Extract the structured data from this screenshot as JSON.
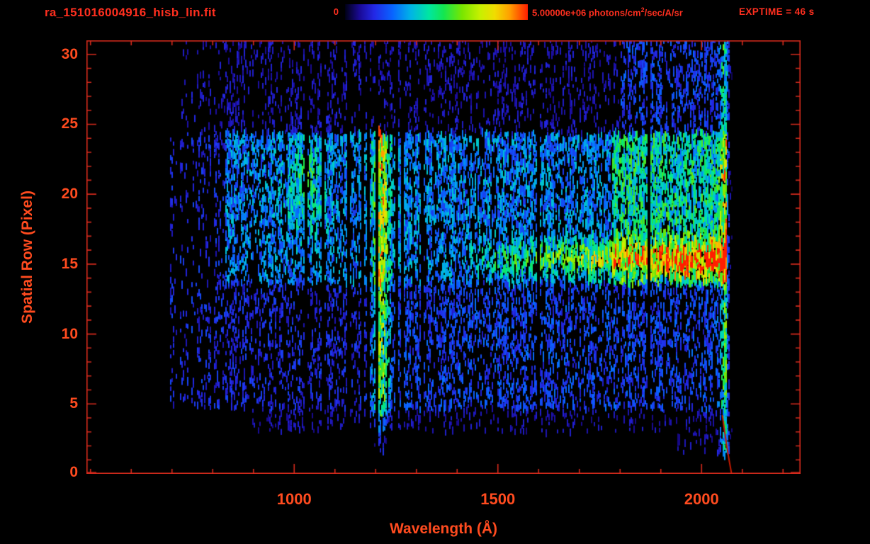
{
  "header": {
    "filename": "ra_151016004916_hisb_lin.fit",
    "exptime": "EXPTIME = 46 s",
    "colorbar": {
      "min_label": "0",
      "max_value": "5.00000e+06",
      "max_unit_pre": " photons/cm",
      "max_unit_sup": "2",
      "max_unit_post": "/sec/A/sr"
    }
  },
  "colors": {
    "background": "#000000",
    "header_text": "#ff2f1f",
    "axis_text": "#ff4b1f",
    "frame": "#d52a1c"
  },
  "chart_data": {
    "type": "heatmap",
    "title": "ra_151016004916_hisb_lin.fit",
    "xlabel": "Wavelength (Å)",
    "ylabel": "Spatial Row (Pixel)",
    "xlim": [
      490,
      2243
    ],
    "ylim": [
      0,
      31
    ],
    "x_ticks": [
      1000,
      1500,
      2000
    ],
    "x_minor_step": 100,
    "y_ticks": [
      0,
      5,
      10,
      15,
      20,
      25,
      30
    ],
    "y_minor_step": 1,
    "exposure_time_s": 46,
    "colorbar_range_photons": [
      0,
      5000000
    ],
    "colorbar_units": "photons/cm^2/sec/A/sr",
    "colormap_stops": [
      [
        0.0,
        "#000014"
      ],
      [
        0.08,
        "#1a0a96"
      ],
      [
        0.16,
        "#2328e6"
      ],
      [
        0.26,
        "#0864ff"
      ],
      [
        0.36,
        "#00b4e6"
      ],
      [
        0.46,
        "#00e6a0"
      ],
      [
        0.54,
        "#14e650"
      ],
      [
        0.64,
        "#78e600"
      ],
      [
        0.74,
        "#c8f000"
      ],
      [
        0.82,
        "#f0dc00"
      ],
      [
        0.9,
        "#ffa000"
      ],
      [
        1.0,
        "#ff1e00"
      ]
    ],
    "features": [
      {
        "name": "background-noise-main",
        "type": "noise",
        "wavelength": [
          695,
          2062
        ],
        "rows": [
          4.6,
          24.2
        ],
        "level": 0.16
      },
      {
        "name": "background-noise-top",
        "type": "noise",
        "wavelength": [
          720,
          2062
        ],
        "rows": [
          24.2,
          30.9
        ],
        "level": 0.11
      },
      {
        "name": "background-noise-bottom",
        "type": "noise",
        "wavelength": [
          890,
          2062
        ],
        "rows": [
          3.0,
          4.6
        ],
        "level": 0.1
      },
      {
        "name": "background-noise-bottom-right",
        "type": "noise",
        "wavelength": [
          1940,
          2062
        ],
        "rows": [
          1.3,
          3.0
        ],
        "level": 0.09
      },
      {
        "name": "mid-diffuse-band",
        "type": "band",
        "wavelength": [
          830,
          2062
        ],
        "rows": [
          13.8,
          24.2
        ],
        "amp": 0.15
      },
      {
        "name": "lower-diffuse-band",
        "type": "band",
        "wavelength": [
          1230,
          2062
        ],
        "rows": [
          4.6,
          13.8
        ],
        "amp": 0.05
      },
      {
        "name": "right-bright-band",
        "type": "band",
        "wavelength": [
          1780,
          2062
        ],
        "rows": [
          13.8,
          24.2
        ],
        "amp": 0.17
      },
      {
        "name": "top-right-band",
        "type": "band",
        "wavelength": [
          1800,
          2055
        ],
        "rows": [
          24.2,
          30.9
        ],
        "amp": 0.09
      },
      {
        "name": "lyman-alpha-emission-line",
        "type": "vline",
        "center": 1212,
        "sigma": 13,
        "rows": [
          4.3,
          24.2
        ],
        "amp": 0.5
      },
      {
        "name": "lyman-alpha-lower-tail",
        "type": "vline",
        "center": 1212,
        "sigma": 10,
        "rows": [
          1.8,
          4.3
        ],
        "amp": 0.18
      },
      {
        "name": "airglow-blob-1030",
        "type": "blob",
        "center_wavelength": 1028,
        "sigma_wavelength": 30,
        "center_row": 20.5,
        "sigma_row": 2.3,
        "amp": 0.22
      },
      {
        "name": "target-continuum-streak",
        "type": "hstreak",
        "row": 15.45,
        "sigma": 0.8,
        "wavelength": [
          1430,
          2062
        ],
        "amp_start": 0.1,
        "amp_end": 0.72
      },
      {
        "name": "detector-edge-column",
        "type": "vline",
        "center": 2056,
        "sigma": 8,
        "rows": [
          1.5,
          30.9
        ],
        "amp": 0.34
      },
      {
        "name": "detector-edge-cutoff-curve",
        "type": "edge-curve",
        "wavelength": 2058,
        "row_top": 4.2,
        "color": "#c41a00"
      }
    ]
  }
}
